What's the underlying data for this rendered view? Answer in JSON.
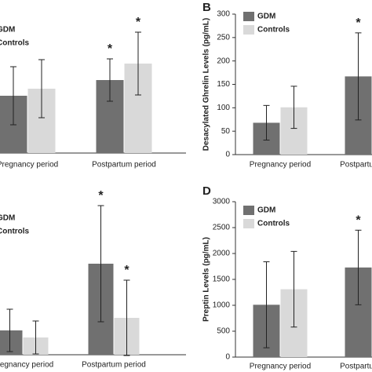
{
  "chart_data": [
    {
      "type": "bar",
      "categories": [
        "Pregnancy period",
        "Postpartum period"
      ],
      "series": [
        {
          "name": "GDM",
          "color": "#707070",
          "values": [
            73,
            93
          ],
          "errors": [
            37,
            27
          ],
          "markers": [
            null,
            "*"
          ]
        },
        {
          "name": "Controls",
          "color": "#d9d9d9",
          "values": [
            82,
            114
          ],
          "errors": [
            37,
            40
          ],
          "markers": [
            null,
            "*"
          ]
        }
      ],
      "ylim": [
        0,
        200
      ]
    },
    {
      "type": "bar",
      "label": "B",
      "y_label": "Desacylated Ghrelin Levels (pg/mL)",
      "categories": [
        "Pregnancy period",
        "Postpartum period"
      ],
      "series": [
        {
          "name": "GDM",
          "color": "#707070",
          "values": [
            68,
            167
          ],
          "errors": [
            37,
            93
          ],
          "markers": [
            null,
            "*"
          ]
        },
        {
          "name": "Controls",
          "color": "#d9d9d9",
          "values": [
            101,
            null
          ],
          "errors": [
            45,
            null
          ],
          "markers": [
            null,
            null
          ]
        }
      ],
      "ylim": [
        0,
        300
      ],
      "yticks": [
        0,
        50,
        100,
        150,
        200,
        250,
        300
      ]
    },
    {
      "type": "bar",
      "categories": [
        "Pregnancy period",
        "Postpartum period"
      ],
      "series": [
        {
          "name": "GDM",
          "color": "#707070",
          "values": [
            31,
            116
          ],
          "errors": [
            27,
            74
          ],
          "markers": [
            null,
            "*"
          ]
        },
        {
          "name": "Controls",
          "color": "#d9d9d9",
          "values": [
            22,
            47
          ],
          "errors": [
            21,
            48
          ],
          "markers": [
            null,
            "*"
          ]
        }
      ],
      "ylim": [
        0,
        200
      ]
    },
    {
      "type": "bar",
      "label": "D",
      "y_label": "Preptin Levels (pg/mL)",
      "categories": [
        "Pregnancy period",
        "Postpartum period"
      ],
      "series": [
        {
          "name": "GDM",
          "color": "#707070",
          "values": [
            1010,
            1730
          ],
          "errors": [
            830,
            720
          ],
          "markers": [
            null,
            "*"
          ]
        },
        {
          "name": "Controls",
          "color": "#d9d9d9",
          "values": [
            1310,
            null
          ],
          "errors": [
            730,
            null
          ],
          "markers": [
            null,
            null
          ]
        }
      ],
      "ylim": [
        0,
        3000
      ],
      "yticks": [
        0,
        500,
        1000,
        1500,
        2000,
        2500,
        3000
      ]
    }
  ]
}
